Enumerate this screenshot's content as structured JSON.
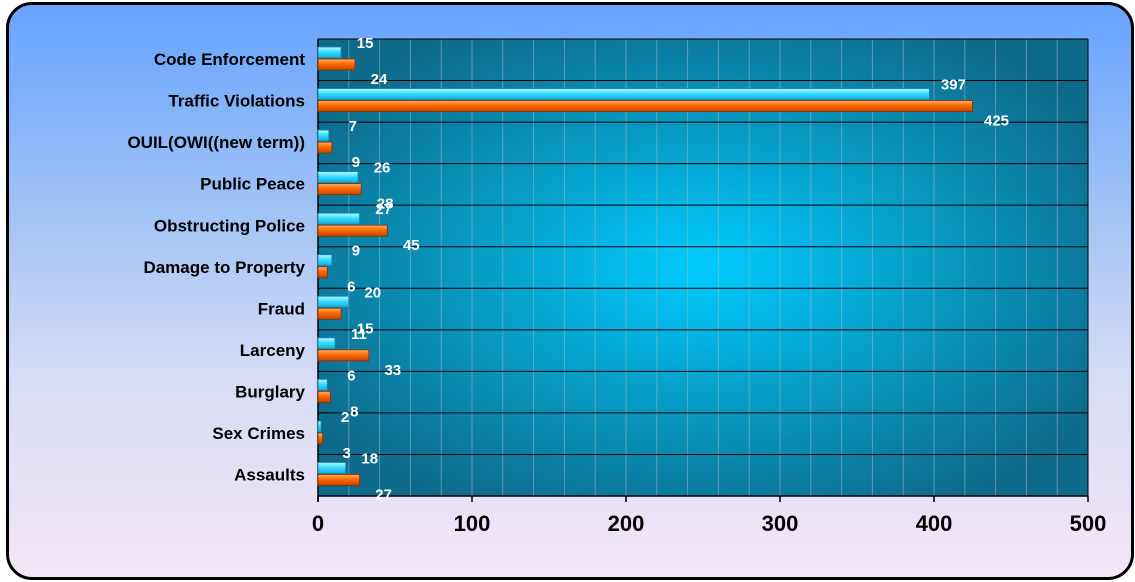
{
  "chart_data": {
    "type": "bar",
    "orientation": "horizontal",
    "categories": [
      "Code Enforcement",
      "Traffic Violations",
      "OUIL(OWI((new term))",
      "Public Peace",
      "Obstructing Police",
      "Damage to Property",
      "Fraud",
      "Larceny",
      "Burglary",
      "Sex Crimes",
      "Assaults"
    ],
    "series": [
      {
        "values": [
          15,
          397,
          7,
          26,
          27,
          9,
          20,
          11,
          6,
          2,
          18
        ],
        "color": "#33e0ff"
      },
      {
        "values": [
          24,
          425,
          9,
          28,
          45,
          6,
          15,
          33,
          8,
          3,
          27
        ],
        "color": "#ff6a00"
      }
    ],
    "xlim": [
      0,
      500
    ],
    "xticks": [
      "0",
      "100",
      "200",
      "300",
      "400",
      "500"
    ],
    "grid": true,
    "title": "",
    "xlabel": "",
    "ylabel": "",
    "colors": {
      "plot_center": "#00ccff",
      "plot_edge": "#0e6a8a",
      "gridline": "#9fb8c8"
    }
  }
}
